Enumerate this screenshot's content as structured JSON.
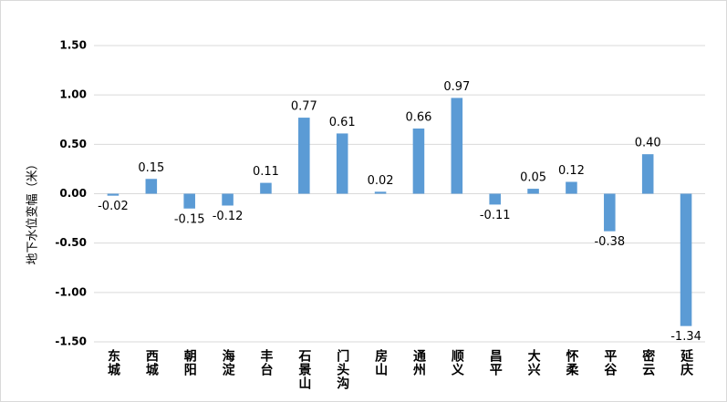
{
  "chart_data": {
    "type": "bar",
    "y_label": "地下水位变幅（米）",
    "categories": [
      "东城",
      "西城",
      "朝阳",
      "海淀",
      "丰台",
      "石景山",
      "门头沟",
      "房山",
      "通州",
      "顺义",
      "昌平",
      "大兴",
      "怀柔",
      "平谷",
      "密云",
      "延庆"
    ],
    "values": [
      -0.02,
      0.15,
      -0.15,
      -0.12,
      0.11,
      0.77,
      0.61,
      0.02,
      0.66,
      0.97,
      -0.11,
      0.05,
      0.12,
      -0.38,
      0.4,
      -1.34
    ],
    "value_labels": [
      "-0.02",
      "0.15",
      "-0.15",
      "-0.12",
      "0.11",
      "0.77",
      "0.61",
      "0.02",
      "0.66",
      "0.97",
      "-0.11",
      "0.05",
      "0.12",
      "-0.38",
      "0.40",
      "-1.34"
    ],
    "color": "#5b9bd5",
    "ylim": [
      -1.5,
      1.5
    ],
    "yticks": [
      {
        "value": 1.5,
        "label": "1.50"
      },
      {
        "value": 1.0,
        "label": "1.00"
      },
      {
        "value": 0.5,
        "label": "0.50"
      },
      {
        "value": 0.0,
        "label": "0.00"
      },
      {
        "value": -0.5,
        "label": "-0.50"
      },
      {
        "value": -1.0,
        "label": "-1.00"
      },
      {
        "value": -1.5,
        "label": "-1.50"
      }
    ],
    "grid": true
  }
}
